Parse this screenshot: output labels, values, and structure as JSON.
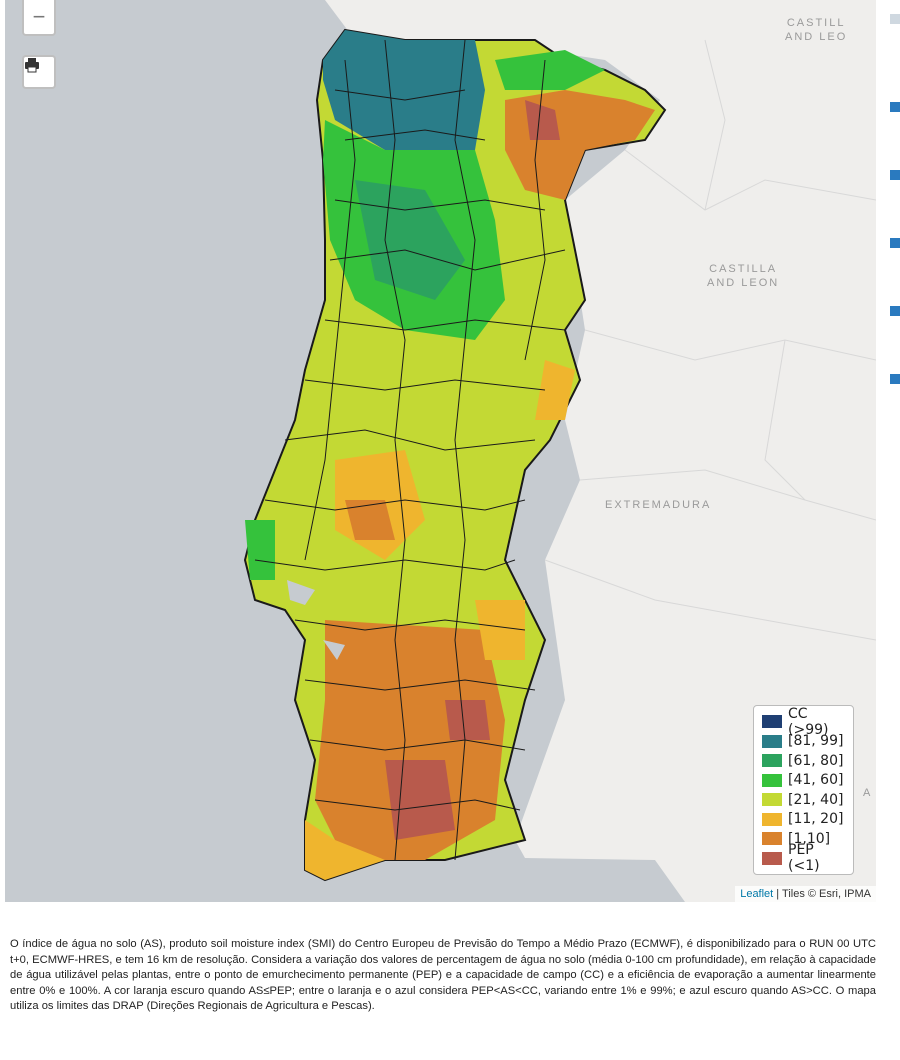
{
  "map": {
    "zoom_out_label": "−",
    "print_icon": "printer-icon",
    "regions": [
      {
        "line1": "CASTILL",
        "line2": "AND LEO"
      },
      {
        "line1": "CASTILLA",
        "line2": "AND LEON"
      },
      {
        "line1": "EXTREMADURA",
        "line2": ""
      },
      {
        "line1": "A",
        "line2": ""
      }
    ],
    "attribution_link": "Leaflet",
    "attribution_text": " | Tiles © Esri, IPMA"
  },
  "legend": {
    "items": [
      {
        "label": "CC (>99)",
        "color": "#1f3f73"
      },
      {
        "label": "[81, 99]",
        "color": "#2a7d89"
      },
      {
        "label": "[61, 80]",
        "color": "#2ca35e"
      },
      {
        "label": "[41, 60]",
        "color": "#35c23c"
      },
      {
        "label": "[21, 40]",
        "color": "#c3d934"
      },
      {
        "label": "[11, 20]",
        "color": "#efb52e"
      },
      {
        "label": "[1,10]",
        "color": "#d9822d"
      },
      {
        "label": "PEP (<1)",
        "color": "#b85a4c"
      }
    ]
  },
  "description": "O índice de água no solo (AS), produto soil moisture index (SMI) do Centro Europeu de Previsão do Tempo a Médio Prazo (ECMWF), é disponibilizado para o RUN 00 UTC t+0, ECMWF-HRES, e tem 16 km de resolução. Considera a variação dos valores de percentagem de água no solo (média 0-100 cm profundidade), em relação à capacidade de água utilizável pelas plantas, entre o ponto de emurchecimento permanente (PEP) e a capacidade de campo (CC) e a eficiência de evaporação a aumentar linearmente entre 0% e 100%. A cor laranja escuro quando AS≤PEP; entre o laranja e o azul considera PEP<AS<CC, variando entre 1% e 99%; e azul escuro quando AS>CC. O mapa utiliza os limites das DRAP (Direções Regionais de Agricultura e Pescas)."
}
